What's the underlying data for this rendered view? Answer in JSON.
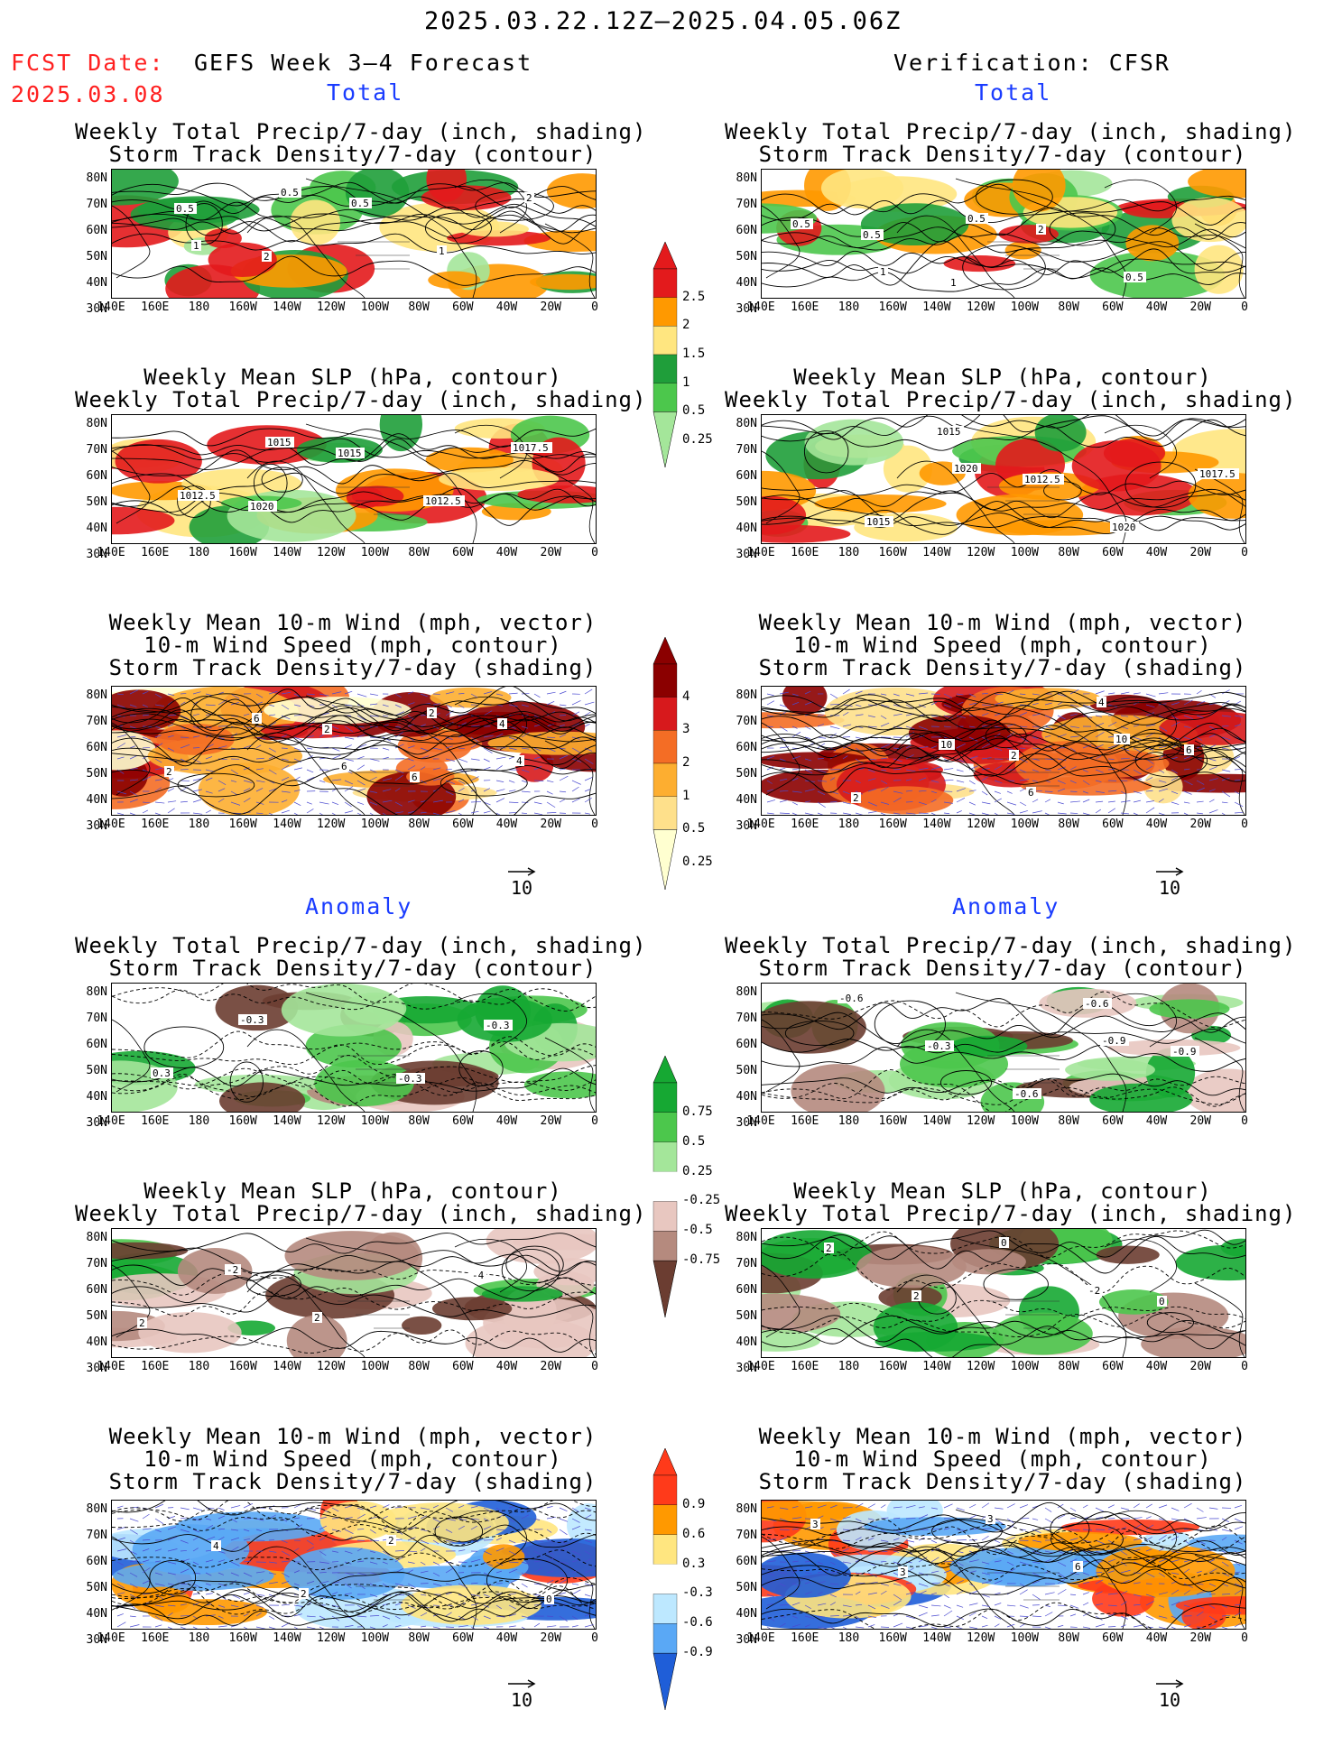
{
  "header": {
    "valid_range": "2025.03.22.12Z–2025.04.05.06Z",
    "fcst_label": "FCST Date:",
    "fcst_date": "2025.03.08",
    "left_title": "GEFS Week 3–4 Forecast",
    "right_title": "Verification: CFSR"
  },
  "sections": {
    "total": "Total",
    "anomaly": "Anomaly"
  },
  "panel_titles": {
    "precip_storm": [
      "Weekly Total Precip/7-day (inch, shading)",
      "Storm Track Density/7-day (contour)"
    ],
    "slp_precip": [
      "Weekly Mean SLP (hPa, contour)",
      "Weekly Total Precip/7-day (inch, shading)"
    ],
    "wind_storm": [
      "Weekly Mean 10-m Wind (mph, vector)",
      "10-m Wind Speed (mph, contour)",
      "Storm Track Density/7-day (shading)"
    ]
  },
  "axes": {
    "lat_labels": [
      "80N",
      "70N",
      "60N",
      "50N",
      "40N",
      "30N"
    ],
    "lon_labels": [
      "140E",
      "160E",
      "180",
      "160W",
      "140W",
      "120W",
      "100W",
      "80W",
      "60W",
      "40W",
      "20W",
      "0"
    ]
  },
  "vector_reference": "10",
  "colorbars": {
    "precip_total": {
      "labels": [
        "2.5",
        "2",
        "1.5",
        "1",
        "0.5",
        "0.25"
      ],
      "colors": [
        "#e31a1c",
        "#ff9900",
        "#ffe680",
        "#1f9e3a",
        "#4cc74c",
        "#a4e69a"
      ]
    },
    "storm_total": {
      "labels": [
        "4",
        "3",
        "2",
        "1",
        "0.5",
        "0.25"
      ],
      "colors": [
        "#8b0000",
        "#d7191c",
        "#f46d25",
        "#fdae30",
        "#fee08b",
        "#ffffd0"
      ]
    },
    "precip_anom": {
      "labels": [
        "0.75",
        "0.5",
        "0.25",
        "-0.25",
        "-0.5",
        "-0.75"
      ],
      "colors": [
        "#16a833",
        "#4cc74c",
        "#a4e69a",
        "#e8c7c0",
        "#b58a7e",
        "#6b3d31"
      ]
    },
    "storm_anom": {
      "labels": [
        "0.9",
        "0.6",
        "0.3",
        "-0.3",
        "-0.6",
        "-0.9"
      ],
      "colors": [
        "#ff3a1a",
        "#ff9900",
        "#ffe680",
        "#bde8ff",
        "#5aa8f5",
        "#1f5ed8"
      ]
    }
  },
  "contour_labels": {
    "p1": [
      "0.5",
      "2",
      "0.5",
      "1",
      "2",
      "1",
      "0.5"
    ],
    "p2": [
      "0.5",
      "1",
      "2",
      "0.5",
      "0.5",
      "1",
      "0.5"
    ],
    "p3": [
      "1020",
      "1015",
      "1012.5",
      "1017.5",
      "1012.5",
      "1015"
    ],
    "p4": [
      "1015",
      "1012.5",
      "1020",
      "1017.5",
      "1015",
      "1020"
    ],
    "p5": [
      "2",
      "6",
      "4",
      "2",
      "6",
      "6",
      "2",
      "4"
    ],
    "p6": [
      "2",
      "4",
      "6",
      "2",
      "10",
      "6",
      "10"
    ],
    "p7": [
      "-0.3",
      "-0.3",
      "0.3",
      "-0.3"
    ],
    "p8": [
      "-0.6",
      "-0.9",
      "-0.6",
      "-0.3",
      "-0.6",
      "-0.9"
    ],
    "p9": [
      "-4",
      "2",
      "-2",
      "2"
    ],
    "p10": [
      "0",
      "2",
      "2",
      "0",
      "-2"
    ],
    "p11": [
      "0",
      "4",
      "2",
      "2"
    ],
    "p12": [
      "3",
      "3",
      "3",
      "6"
    ]
  }
}
